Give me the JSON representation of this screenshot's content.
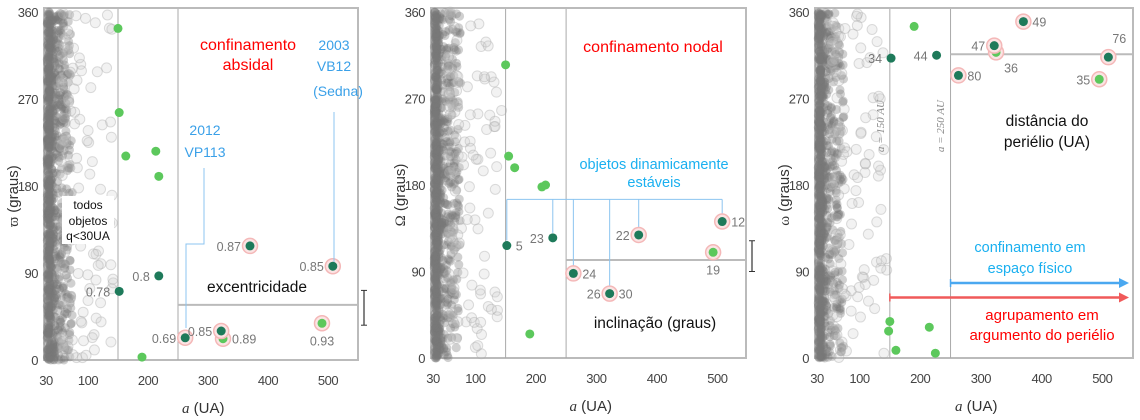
{
  "chart_data": [
    {
      "type": "scatter",
      "xlabel_symbol": "a",
      "xlabel_unit": "(UA)",
      "ylabel_symbol": "ϖ",
      "ylabel_unit": "(graus)",
      "xticks": [
        30,
        100,
        200,
        300,
        400,
        500
      ],
      "yticks": [
        0,
        90,
        180,
        270,
        360
      ],
      "xlim": [
        30,
        550
      ],
      "ylim": [
        0,
        360
      ],
      "vlines": [
        150,
        250
      ],
      "hline": {
        "y": 57,
        "from": 250
      },
      "errorbar": [
        36,
        72
      ],
      "points_light": [
        {
          "a": 150,
          "v": 343
        },
        {
          "a": 152,
          "v": 256
        },
        {
          "a": 163,
          "v": 211
        },
        {
          "a": 213,
          "v": 216
        },
        {
          "a": 218,
          "v": 190
        },
        {
          "a": 190,
          "v": 3
        },
        {
          "a": 490,
          "v": 38,
          "label": "0.93",
          "side": "below",
          "halo": true
        },
        {
          "a": 325,
          "v": 22,
          "label": "0.89",
          "side": "right",
          "halo": true
        }
      ],
      "points_dark": [
        {
          "a": 152,
          "v": 71,
          "label": "0.78",
          "side": "left"
        },
        {
          "a": 218,
          "v": 87,
          "label": "0.8",
          "side": "left"
        },
        {
          "a": 262,
          "v": 23,
          "label": "0.69",
          "side": "left",
          "halo": true
        },
        {
          "a": 322,
          "v": 30,
          "label": "0.85",
          "side": "left",
          "halo": true
        },
        {
          "a": 370,
          "v": 118,
          "label": "0.87",
          "side": "left",
          "halo": true
        },
        {
          "a": 508,
          "v": 97,
          "label": "0.85",
          "side": "left",
          "halo": true
        }
      ],
      "annotations": {
        "title": [
          "confinamento",
          "absidal"
        ],
        "sedna": [
          "2003",
          "VB12",
          "(Sedna)"
        ],
        "vp113": [
          "2012",
          "VP113"
        ],
        "all_objects": [
          "todos",
          "objetos",
          "q<30UA"
        ],
        "param": "excentricidade"
      }
    },
    {
      "type": "scatter",
      "xlabel_symbol": "a",
      "xlabel_unit": "(UA)",
      "ylabel_symbol": "Ω",
      "ylabel_unit": "(graus)",
      "xticks": [
        30,
        100,
        200,
        300,
        400,
        500
      ],
      "yticks": [
        0,
        90,
        180,
        270,
        360
      ],
      "xlim": [
        30,
        550
      ],
      "ylim": [
        0,
        360
      ],
      "vlines": [
        150,
        250
      ],
      "hline": {
        "y": 102,
        "from": 250
      },
      "errorbar": [
        90,
        122
      ],
      "points_light": [
        {
          "a": 150,
          "v": 305
        },
        {
          "a": 155,
          "v": 210
        },
        {
          "a": 165,
          "v": 198
        },
        {
          "a": 210,
          "v": 178
        },
        {
          "a": 216,
          "v": 180
        },
        {
          "a": 190,
          "v": 25
        },
        {
          "a": 493,
          "v": 110,
          "label": "19",
          "side": "below",
          "halo": true
        }
      ],
      "points_dark": [
        {
          "a": 152,
          "v": 117,
          "label": "5",
          "side": "right"
        },
        {
          "a": 228,
          "v": 125,
          "label": "23",
          "side": "left"
        },
        {
          "a": 262,
          "v": 88,
          "label": "24",
          "side": "right",
          "halo": true
        },
        {
          "a": 322,
          "v": 67,
          "label": "26",
          "side": "left",
          "halo": true,
          "label2": "30"
        },
        {
          "a": 370,
          "v": 128,
          "label": "22",
          "side": "left",
          "halo": true
        },
        {
          "a": 508,
          "v": 142,
          "label": "12",
          "side": "right",
          "halo": true
        }
      ],
      "bracket": {
        "y": 165,
        "drops": [
          152,
          228,
          262,
          322,
          370,
          508
        ]
      },
      "annotations": {
        "title": [
          "confinamento nodal"
        ],
        "stable": [
          "objetos dinamicamente",
          "estáveis"
        ],
        "param": "inclinação (graus)"
      }
    },
    {
      "type": "scatter",
      "xlabel_symbol": "a",
      "xlabel_unit": "(UA)",
      "ylabel_symbol": "ω",
      "ylabel_unit": "(graus)",
      "xticks": [
        30,
        100,
        200,
        300,
        400,
        500
      ],
      "yticks": [
        0,
        90,
        180,
        270,
        360
      ],
      "xlim": [
        30,
        550
      ],
      "ylim": [
        0,
        360
      ],
      "vlines": [
        150,
        250
      ],
      "vline_labels": [
        "a = 150 AU",
        "a = 250 AU"
      ],
      "hline": {
        "y": 316,
        "from": 250
      },
      "points_light": [
        {
          "a": 190,
          "v": 345
        },
        {
          "a": 150,
          "v": 38
        },
        {
          "a": 148,
          "v": 28
        },
        {
          "a": 160,
          "v": 8
        },
        {
          "a": 215,
          "v": 32
        },
        {
          "a": 225,
          "v": 5
        },
        {
          "a": 325,
          "v": 318,
          "label": "36",
          "side": "belowright",
          "halo": true
        },
        {
          "a": 495,
          "v": 290,
          "label": "35",
          "side": "left",
          "halo": true
        }
      ],
      "points_dark": [
        {
          "a": 152,
          "v": 312,
          "label": "34",
          "side": "left"
        },
        {
          "a": 227,
          "v": 315,
          "label": "44",
          "side": "left"
        },
        {
          "a": 263,
          "v": 294,
          "label": "80",
          "side": "right",
          "halo": true
        },
        {
          "a": 322,
          "v": 325,
          "label": "47",
          "side": "left",
          "halo": true
        },
        {
          "a": 370,
          "v": 350,
          "label": "49",
          "side": "right",
          "halo": true
        },
        {
          "a": 510,
          "v": 313,
          "label": "76",
          "side": "aboveright",
          "halo": true
        }
      ],
      "arrows": [
        {
          "from": 250,
          "y": 78,
          "color": "#4aa8f0"
        },
        {
          "from": 150,
          "y": 63,
          "color": "#f05a5a"
        }
      ],
      "annotations": {
        "param": [
          "distância do",
          "periélio (UA)"
        ],
        "physical": [
          "confinamento em",
          "espaço físico"
        ],
        "perihelion": [
          "agrupamento em",
          "argumento do periélio"
        ]
      }
    }
  ],
  "colors": {
    "light_green": "#5cc85c",
    "dark_green": "#1e7a5a",
    "halo": "#f4b8b8",
    "cloud": "#777777",
    "frame": "#bbbbbb"
  }
}
